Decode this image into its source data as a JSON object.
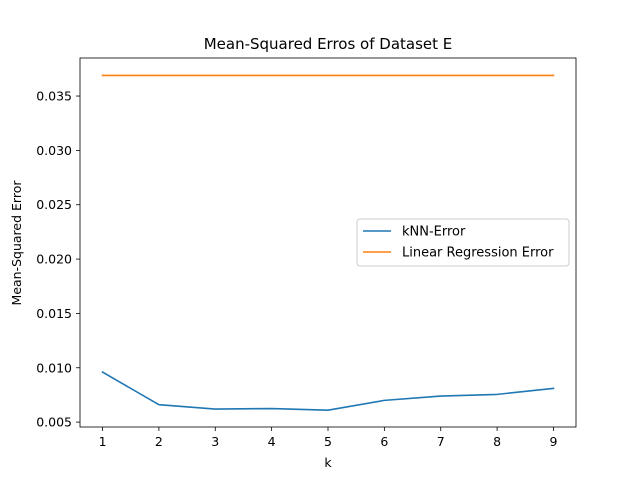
{
  "chart_data": {
    "type": "line",
    "title": "Mean-Squared Erros of Dataset E",
    "xlabel": "k",
    "ylabel": "Mean-Squared Error",
    "x": [
      1,
      2,
      3,
      4,
      5,
      6,
      7,
      8,
      9
    ],
    "series": [
      {
        "name": "kNN-Error",
        "color": "#1f77b4",
        "values": [
          0.0096,
          0.0066,
          0.0062,
          0.00625,
          0.0061,
          0.007,
          0.0074,
          0.00755,
          0.0081
        ]
      },
      {
        "name": "Linear Regression Error",
        "color": "#ff7f0e",
        "values": [
          0.0369,
          0.0369,
          0.0369,
          0.0369,
          0.0369,
          0.0369,
          0.0369,
          0.0369,
          0.0369
        ]
      }
    ],
    "xticks": [
      "1",
      "2",
      "3",
      "4",
      "5",
      "6",
      "7",
      "8",
      "9"
    ],
    "yticks": [
      "0.005",
      "0.010",
      "0.015",
      "0.020",
      "0.025",
      "0.030",
      "0.035"
    ],
    "ytick_values": [
      0.005,
      0.01,
      0.015,
      0.02,
      0.025,
      0.03,
      0.035
    ],
    "xlim": [
      0.6,
      9.4
    ],
    "ylim": [
      0.00455,
      0.0385
    ],
    "grid": false,
    "legend_position": "center-right"
  }
}
